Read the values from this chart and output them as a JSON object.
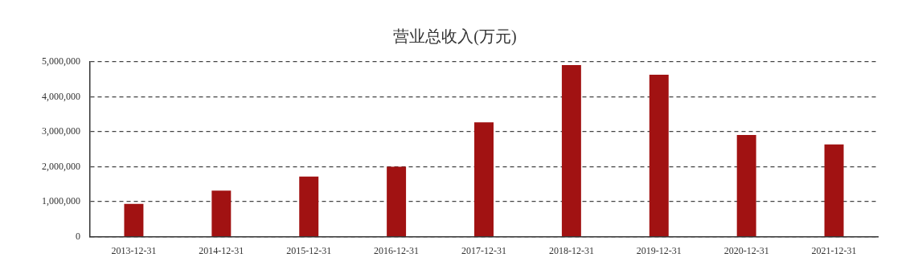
{
  "chart_data": {
    "type": "bar",
    "title": "营业总收入(万元)",
    "categories": [
      "2013-12-31",
      "2014-12-31",
      "2015-12-31",
      "2016-12-31",
      "2017-12-31",
      "2018-12-31",
      "2019-12-31",
      "2020-12-31",
      "2021-12-31"
    ],
    "values": [
      940000,
      1320000,
      1720000,
      2000000,
      3270000,
      4910000,
      4630000,
      2910000,
      2640000
    ],
    "color": "#a11212",
    "ylim": [
      0,
      5000000
    ],
    "yticks": [
      0,
      {
        "value": 1000000,
        "label": "1,000,000"
      },
      {
        "value": 2000000,
        "label": "2,000,000"
      },
      {
        "value": 3000000,
        "label": "3,000,000"
      },
      {
        "value": 4000000,
        "label": "4,000,000"
      },
      {
        "value": 5000000,
        "label": "5,000,000"
      }
    ],
    "grid": "y",
    "legend": false
  }
}
